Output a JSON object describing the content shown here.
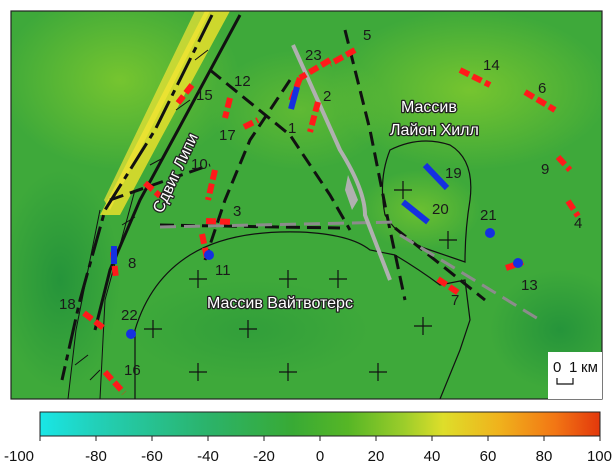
{
  "labels": {
    "fault": "Сдвиг Липи",
    "massif1_line1": "Массив",
    "massif1_line2": "Лайон Хилл",
    "massif2": "Массив Вайтвотерс"
  },
  "scale_bar": {
    "zero": "0",
    "one": "1",
    "unit": "км"
  },
  "colorbar": {
    "ticks": [
      "-100",
      "-80",
      "-60",
      "-40",
      "-20",
      "0",
      "20",
      "40",
      "60",
      "80",
      "100"
    ],
    "colors": [
      "#19e6e6",
      "#25c8a8",
      "#2ab070",
      "#36a83a",
      "#3fac2a",
      "#55b825",
      "#9ed02a",
      "#e0e02a",
      "#f0b81c",
      "#f07a14",
      "#e63a0c"
    ]
  },
  "stations": [
    {
      "id": "1"
    },
    {
      "id": "2"
    },
    {
      "id": "3"
    },
    {
      "id": "4"
    },
    {
      "id": "5"
    },
    {
      "id": "6"
    },
    {
      "id": "7"
    },
    {
      "id": "8"
    },
    {
      "id": "9"
    },
    {
      "id": "10"
    },
    {
      "id": "11"
    },
    {
      "id": "12"
    },
    {
      "id": "13"
    },
    {
      "id": "14"
    },
    {
      "id": "15"
    },
    {
      "id": "16"
    },
    {
      "id": "17"
    },
    {
      "id": "18"
    },
    {
      "id": "19"
    },
    {
      "id": "20"
    },
    {
      "id": "21"
    },
    {
      "id": "22"
    },
    {
      "id": "23"
    }
  ],
  "colors": {
    "red_mark": "#ff1a1a",
    "blue_mark": "#1530e0",
    "fault_line": "#111111",
    "gray_line": "#8c8c8c"
  }
}
